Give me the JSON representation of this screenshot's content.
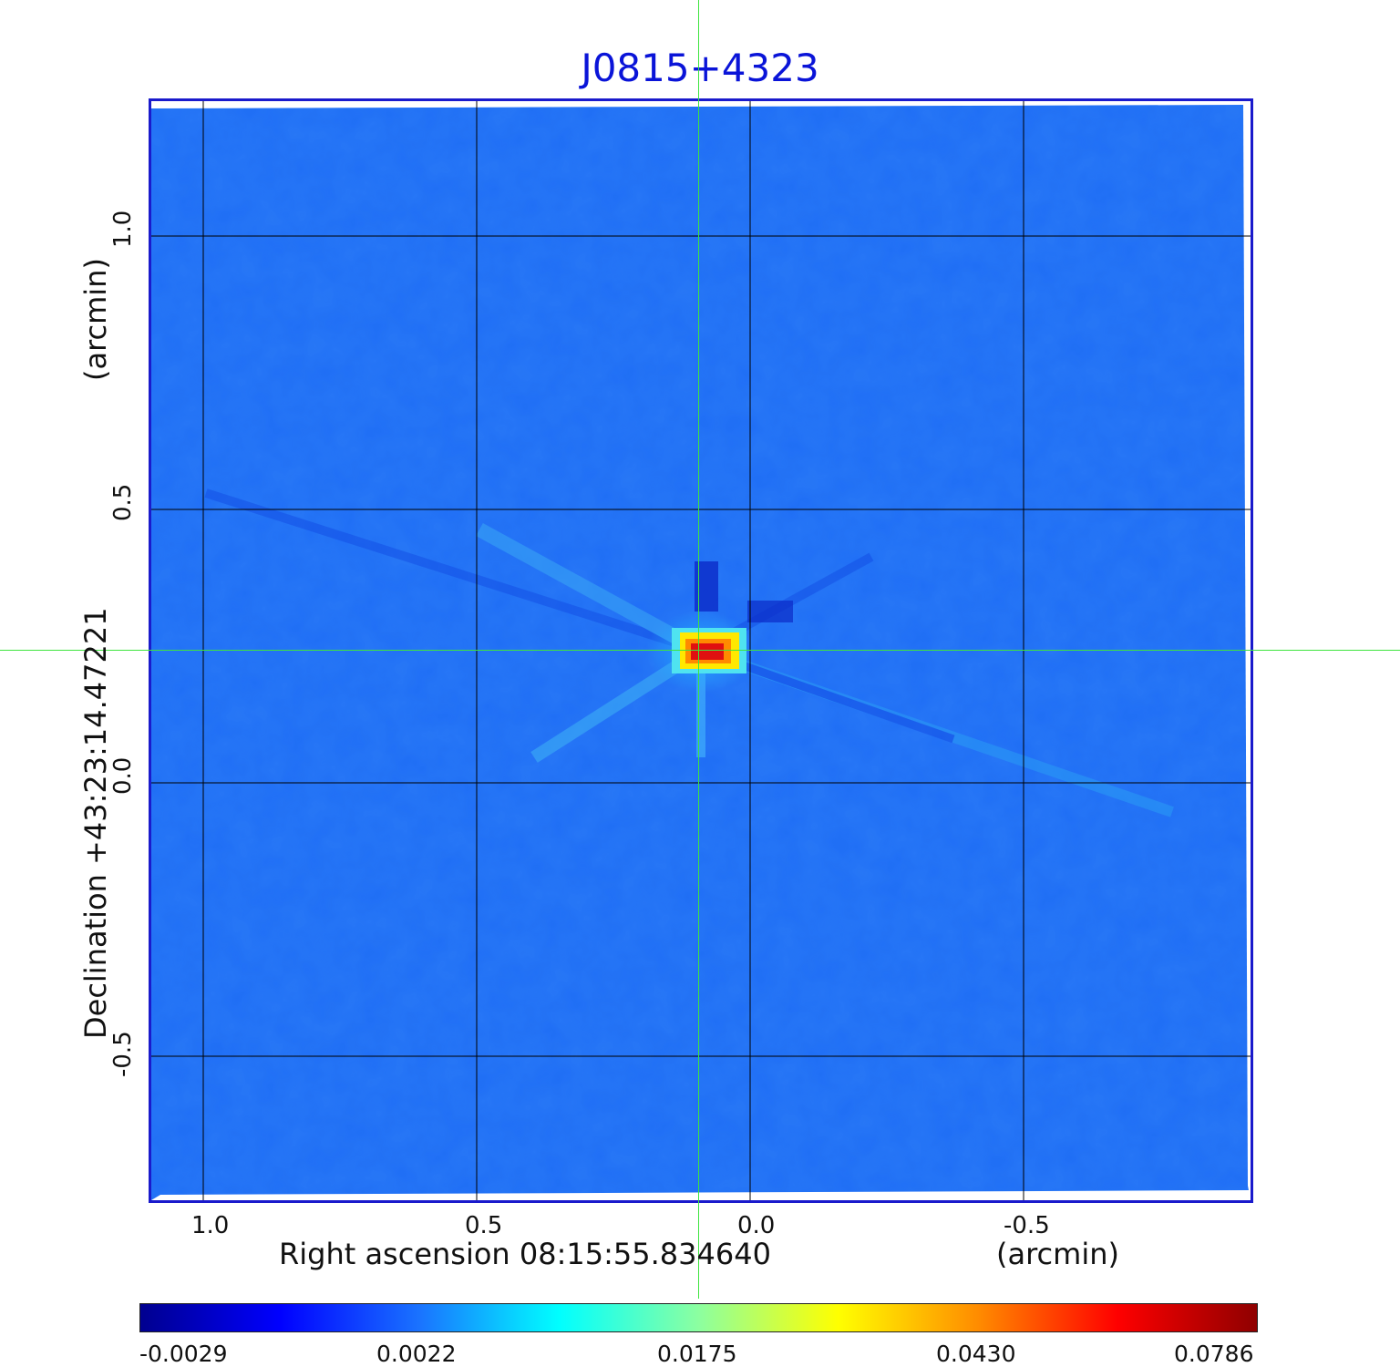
{
  "title": "J0815+4323",
  "x_axis": {
    "label": "Right ascension  08:15:55.834640",
    "unit": "(arcmin)",
    "ticks": [
      "1.0",
      "0.5",
      "0.0",
      "-0.5"
    ]
  },
  "y_axis": {
    "label": "Declination  +43:23:14.47221",
    "unit": "(arcmin)",
    "ticks": [
      "1.0",
      "0.5",
      "0.0",
      "-0.5"
    ]
  },
  "colorbar": {
    "labels": [
      "-0.0029",
      "0.0022",
      "0.0175",
      "0.0430",
      "0.0786"
    ],
    "gradient_stops": [
      "#00008f",
      "#0000ff",
      "#1a73ff",
      "#00ffff",
      "#8cffa0",
      "#ffff00",
      "#ff8c00",
      "#ff0000",
      "#8f0000"
    ]
  },
  "colors": {
    "title": "#0a14d8",
    "frame": "#1a1acc",
    "background_field": "#1f6ef5",
    "crosshair": "#3ee43e",
    "grid": "#000000",
    "source_peak": "#e01010"
  }
}
